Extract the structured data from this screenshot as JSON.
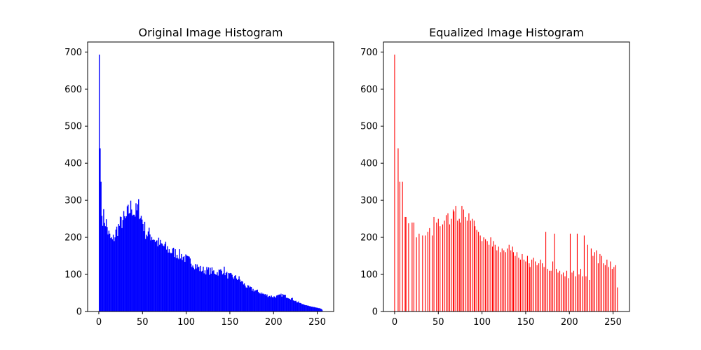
{
  "chart_data": [
    {
      "type": "bar",
      "title": "Original Image Histogram",
      "xlabel": "",
      "ylabel": "",
      "xlim": [
        -12.8,
        268.8
      ],
      "ylim": [
        0,
        727
      ],
      "xticks": [
        0,
        50,
        100,
        150,
        200,
        250
      ],
      "yticks": [
        0,
        100,
        200,
        300,
        400,
        500,
        600,
        700
      ],
      "color": "#0000ff",
      "grid": false,
      "bins": "intensity 0-255 (bin width 1)",
      "anchors": [
        [
          0,
          693
        ],
        [
          1,
          440
        ],
        [
          2,
          350
        ],
        [
          3,
          258
        ],
        [
          5,
          255
        ],
        [
          8,
          238
        ],
        [
          10,
          215
        ],
        [
          12,
          200
        ],
        [
          15,
          190
        ],
        [
          18,
          205
        ],
        [
          20,
          220
        ],
        [
          25,
          240
        ],
        [
          28,
          250
        ],
        [
          30,
          245
        ],
        [
          32,
          262
        ],
        [
          35,
          275
        ],
        [
          37,
          285
        ],
        [
          40,
          265
        ],
        [
          43,
          270
        ],
        [
          45,
          282
        ],
        [
          48,
          255
        ],
        [
          50,
          240
        ],
        [
          53,
          215
        ],
        [
          55,
          210
        ],
        [
          60,
          205
        ],
        [
          65,
          190
        ],
        [
          70,
          180
        ],
        [
          75,
          175
        ],
        [
          80,
          165
        ],
        [
          85,
          160
        ],
        [
          90,
          155
        ],
        [
          95,
          150
        ],
        [
          100,
          140
        ],
        [
          105,
          135
        ],
        [
          110,
          125
        ],
        [
          115,
          115
        ],
        [
          120,
          112
        ],
        [
          125,
          110
        ],
        [
          130,
          108
        ],
        [
          135,
          105
        ],
        [
          140,
          110
        ],
        [
          143,
          112
        ],
        [
          145,
          100
        ],
        [
          150,
          95
        ],
        [
          155,
          92
        ],
        [
          160,
          88
        ],
        [
          163,
          80
        ],
        [
          165,
          75
        ],
        [
          170,
          65
        ],
        [
          175,
          60
        ],
        [
          180,
          55
        ],
        [
          185,
          50
        ],
        [
          190,
          45
        ],
        [
          195,
          42
        ],
        [
          200,
          40
        ],
        [
          205,
          42
        ],
        [
          210,
          45
        ],
        [
          215,
          40
        ],
        [
          220,
          35
        ],
        [
          225,
          28
        ],
        [
          230,
          22
        ],
        [
          235,
          18
        ],
        [
          240,
          15
        ],
        [
          245,
          12
        ],
        [
          250,
          10
        ],
        [
          253,
          8
        ],
        [
          255,
          5
        ]
      ]
    },
    {
      "type": "bar",
      "title": "Equalized Image Histogram",
      "xlabel": "",
      "ylabel": "",
      "xlim": [
        -12.8,
        268.8
      ],
      "ylim": [
        0,
        727
      ],
      "xticks": [
        0,
        50,
        100,
        150,
        200,
        250
      ],
      "yticks": [
        0,
        100,
        200,
        300,
        400,
        500,
        600,
        700
      ],
      "color": "#ff0000",
      "grid": false,
      "x": [
        0,
        4,
        6,
        9,
        12,
        13,
        16,
        20,
        22,
        25,
        28,
        32,
        35,
        38,
        40,
        43,
        45,
        48,
        50,
        52,
        55,
        57,
        59,
        61,
        63,
        65,
        67,
        68,
        70,
        72,
        74,
        75,
        77,
        79,
        81,
        83,
        85,
        87,
        89,
        91,
        92,
        94,
        96,
        98,
        100,
        102,
        104,
        106,
        108,
        110,
        112,
        113,
        115,
        117,
        119,
        121,
        123,
        125,
        127,
        129,
        131,
        133,
        135,
        136,
        138,
        140,
        142,
        144,
        146,
        148,
        150,
        152,
        154,
        155,
        157,
        159,
        161,
        163,
        165,
        167,
        169,
        171,
        173,
        175,
        177,
        179,
        181,
        183,
        185,
        187,
        189,
        191,
        193,
        195,
        197,
        199,
        201,
        203,
        205,
        207,
        209,
        211,
        213,
        215,
        217,
        219,
        221,
        223,
        225,
        227,
        229,
        231,
        233,
        235,
        237,
        239,
        241,
        243,
        245,
        247,
        249,
        251,
        253,
        255
      ],
      "values": [
        693,
        440,
        350,
        350,
        255,
        255,
        238,
        240,
        240,
        200,
        210,
        205,
        205,
        215,
        225,
        205,
        255,
        240,
        250,
        230,
        235,
        245,
        260,
        265,
        235,
        250,
        275,
        270,
        285,
        245,
        250,
        240,
        285,
        275,
        255,
        245,
        265,
        245,
        250,
        245,
        230,
        220,
        215,
        205,
        190,
        200,
        195,
        190,
        180,
        200,
        175,
        190,
        180,
        165,
        175,
        160,
        170,
        165,
        160,
        170,
        180,
        165,
        175,
        160,
        150,
        160,
        145,
        140,
        155,
        140,
        135,
        150,
        130,
        120,
        140,
        145,
        135,
        125,
        130,
        140,
        130,
        120,
        215,
        115,
        110,
        110,
        135,
        210,
        115,
        105,
        110,
        100,
        105,
        95,
        110,
        90,
        210,
        105,
        110,
        95,
        210,
        100,
        115,
        95,
        205,
        95,
        180,
        85,
        170,
        150,
        160,
        165,
        130,
        155,
        150,
        130,
        125,
        140,
        120,
        135,
        115,
        120,
        125,
        65
      ]
    }
  ],
  "colors": {
    "background": "#ffffff",
    "axes": "#000000"
  }
}
